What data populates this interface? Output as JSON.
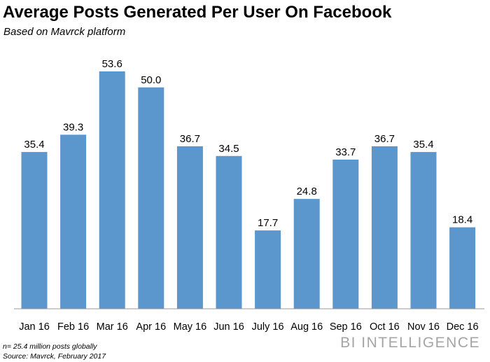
{
  "header": {
    "title": "Average Posts Generated Per User On Facebook",
    "subtitle": "Based on Mavrck platform"
  },
  "chart_data": {
    "type": "bar",
    "title": "Average Posts Generated Per User On Facebook",
    "subtitle": "Based on Mavrck platform",
    "categories": [
      "Jan 16",
      "Feb 16",
      "Mar 16",
      "Apr 16",
      "May 16",
      "Jun 16",
      "July 16",
      "Aug 16",
      "Sep 16",
      "Oct 16",
      "Nov 16",
      "Dec 16"
    ],
    "values": [
      35.4,
      39.3,
      53.6,
      50.0,
      36.7,
      34.5,
      17.7,
      24.8,
      33.7,
      36.7,
      35.4,
      18.4
    ],
    "value_labels": [
      "35.4",
      "39.3",
      "53.6",
      "50.0",
      "36.7",
      "34.5",
      "17.7",
      "24.8",
      "33.7",
      "36.7",
      "35.4",
      "18.4"
    ],
    "xlabel": "",
    "ylabel": "",
    "ylim": [
      0,
      53.6
    ],
    "grid": false,
    "legend": "none",
    "bar_color": "#5b96cc"
  },
  "footer": {
    "note": "n= 25.4 million posts globally",
    "source": "Source: Mavrck, February 2017",
    "brand": "BI INTELLIGENCE"
  }
}
